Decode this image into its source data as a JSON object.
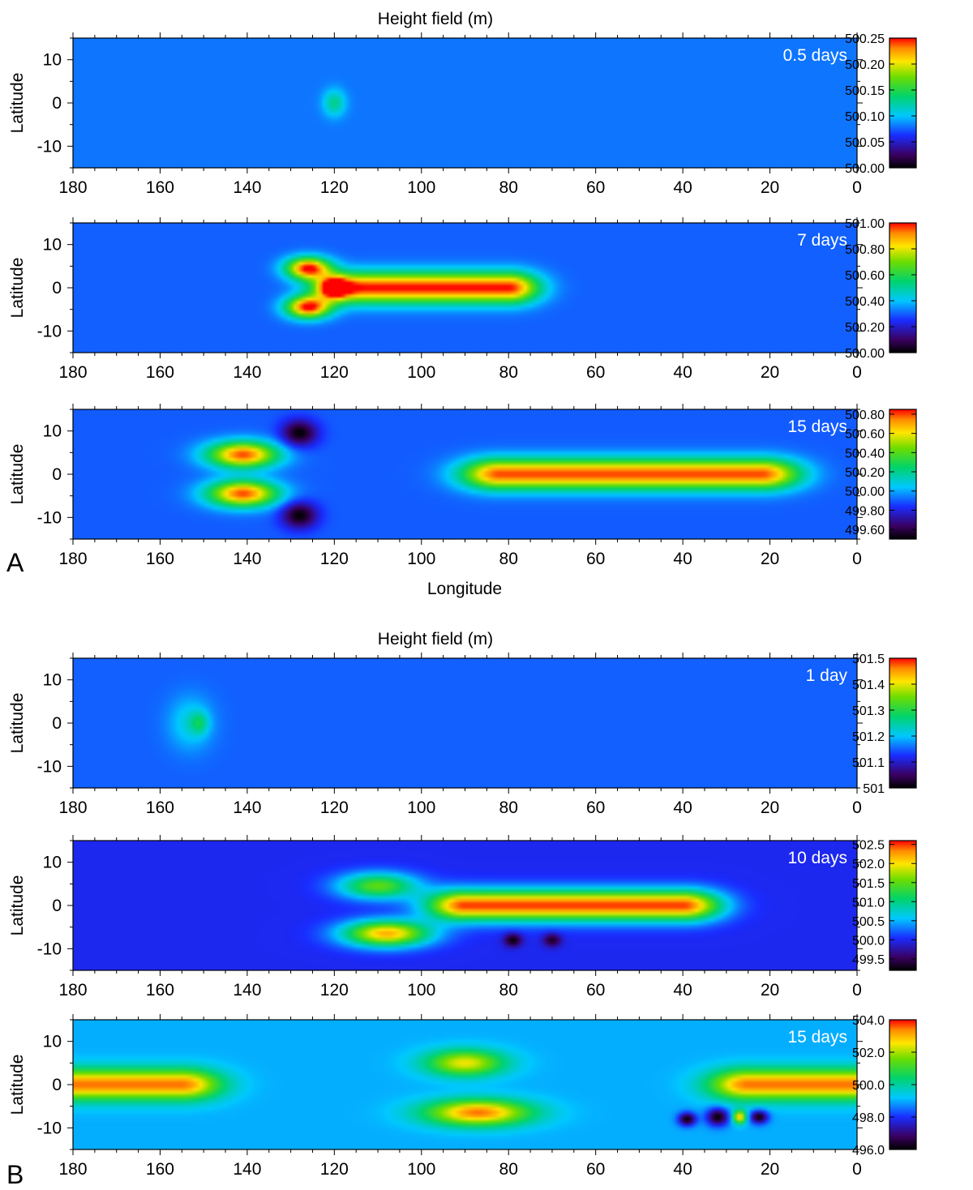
{
  "figure": {
    "groups": [
      {
        "label": "A",
        "title": "Height field (m)",
        "xlabel": "Longitude"
      },
      {
        "label": "B",
        "title": "Height field (m)",
        "xlabel": ""
      }
    ]
  },
  "chart_data": [
    {
      "type": "heatmap",
      "panel_label": "0.5 days",
      "xlabel": "",
      "ylabel": "Latitude",
      "xlim": [
        180,
        0
      ],
      "ylim": [
        -15,
        15
      ],
      "x_ticks": [
        180,
        160,
        140,
        120,
        100,
        80,
        60,
        40,
        20,
        0
      ],
      "y_ticks": [
        10,
        0,
        -10
      ],
      "colorbar": {
        "min": 500.0,
        "max": 500.25,
        "ticks": [
          "500.25",
          "500.20",
          "500.15",
          "500.10",
          "500.05",
          "500.00"
        ]
      },
      "background": 500.08,
      "features": [
        {
          "lon": 120,
          "lat": 0,
          "rlon": 2.5,
          "rlat": 3.0,
          "amp": 0.05
        }
      ]
    },
    {
      "type": "heatmap",
      "panel_label": "7 days",
      "xlabel": "",
      "ylabel": "Latitude",
      "xlim": [
        180,
        0
      ],
      "ylim": [
        -15,
        15
      ],
      "x_ticks": [
        180,
        160,
        140,
        120,
        100,
        80,
        60,
        40,
        20,
        0
      ],
      "y_ticks": [
        10,
        0,
        -10
      ],
      "colorbar": {
        "min": 500.0,
        "max": 501.0,
        "ticks": [
          "501.00",
          "500.80",
          "500.60",
          "500.40",
          "500.20",
          "500.00"
        ]
      },
      "background": 500.3,
      "features": [
        {
          "lon0": 118,
          "lon1": 80,
          "lat": 0,
          "rlat": 3.5,
          "edge": 7,
          "amp": 0.7
        },
        {
          "lon": 126,
          "lat": 4.5,
          "rlon": 5,
          "rlat": 2.5,
          "amp": 0.7
        },
        {
          "lon": 126,
          "lat": -4.5,
          "rlon": 5,
          "rlat": 2.5,
          "amp": 0.7
        },
        {
          "lon": 120,
          "lat": 0,
          "rlon": 3,
          "rlat": 2,
          "amp": 0.5
        }
      ]
    },
    {
      "type": "heatmap",
      "panel_label": "15 days",
      "xlabel": "Longitude",
      "ylabel": "Latitude",
      "xlim": [
        180,
        0
      ],
      "ylim": [
        -15,
        15
      ],
      "x_ticks": [
        180,
        160,
        140,
        120,
        100,
        80,
        60,
        40,
        20,
        0
      ],
      "y_ticks": [
        10,
        0,
        -10
      ],
      "colorbar": {
        "min": 499.5,
        "max": 500.85,
        "ticks": [
          "500.80",
          "500.60",
          "500.40",
          "500.20",
          "500.00",
          "499.80",
          "499.60"
        ]
      },
      "background": 499.9,
      "features": [
        {
          "lon0": 82,
          "lon1": 22,
          "lat": 0,
          "rlat": 3.5,
          "edge": 9,
          "amp": 0.9
        },
        {
          "lon": 141,
          "lat": 4.5,
          "rlon": 8,
          "rlat": 3,
          "amp": 0.9
        },
        {
          "lon": 141,
          "lat": -4.5,
          "rlon": 8,
          "rlat": 3,
          "amp": 0.9
        },
        {
          "lon": 128,
          "lat": 9.5,
          "rlon": 4,
          "rlat": 3,
          "amp": -0.4
        },
        {
          "lon": 128,
          "lat": -9.5,
          "rlon": 4,
          "rlat": 3,
          "amp": -0.4
        }
      ]
    },
    {
      "type": "heatmap",
      "panel_label": "1 day",
      "xlabel": "",
      "ylabel": "Latitude",
      "xlim": [
        180,
        0
      ],
      "ylim": [
        -15,
        15
      ],
      "x_ticks": [
        180,
        160,
        140,
        120,
        100,
        80,
        60,
        40,
        20,
        0
      ],
      "y_ticks": [
        10,
        0,
        -10
      ],
      "colorbar": {
        "min": 501.0,
        "max": 501.5,
        "ticks": [
          "501.5",
          "501.4",
          "501.3",
          "501.2",
          "501.1",
          "501"
        ]
      },
      "background": 501.15,
      "features": [
        {
          "lon": 153,
          "lat": 0,
          "rlon": 5,
          "rlat": 6,
          "amp": 0.07
        },
        {
          "lon": 151,
          "lat": 0,
          "rlon": 2,
          "rlat": 2.5,
          "amp": 0.08
        }
      ]
    },
    {
      "type": "heatmap",
      "panel_label": "10 days",
      "xlabel": "",
      "ylabel": "Latitude",
      "xlim": [
        180,
        0
      ],
      "ylim": [
        -15,
        15
      ],
      "x_ticks": [
        180,
        160,
        140,
        120,
        100,
        80,
        60,
        40,
        20,
        0
      ],
      "y_ticks": [
        10,
        0,
        -10
      ],
      "colorbar": {
        "min": 499.2,
        "max": 502.6,
        "ticks": [
          "502.5",
          "502.0",
          "501.5",
          "501.0",
          "500.5",
          "500.0",
          "499.5"
        ]
      },
      "background": 500.0,
      "features": [
        {
          "lon0": 90,
          "lon1": 40,
          "lat": 0,
          "rlat": 3.5,
          "edge": 9,
          "amp": 2.5
        },
        {
          "lon": 110,
          "lat": 4.5,
          "rlon": 9,
          "rlat": 3,
          "amp": 1.5
        },
        {
          "lon": 108,
          "lat": -6.5,
          "rlon": 10,
          "rlat": 3,
          "amp": 2.2
        },
        {
          "lon": 79,
          "lat": -8,
          "rlon": 2,
          "rlat": 1.5,
          "amp": -0.8
        },
        {
          "lon": 70,
          "lat": -8,
          "rlon": 2,
          "rlat": 1.5,
          "amp": -0.7
        }
      ]
    },
    {
      "type": "heatmap",
      "panel_label": "15 days",
      "xlabel": "",
      "ylabel": "Latitude",
      "xlim": [
        180,
        0
      ],
      "ylim": [
        -15,
        15
      ],
      "x_ticks": [
        180,
        160,
        140,
        120,
        100,
        80,
        60,
        40,
        20,
        0
      ],
      "y_ticks": [
        10,
        0,
        -10
      ],
      "colorbar": {
        "min": 496.0,
        "max": 504.0,
        "ticks": [
          "504.0",
          "502.0",
          "500.0",
          "498.0",
          "496.0"
        ]
      },
      "background": 499.0,
      "features": [
        {
          "lon0": 185,
          "lon1": 155,
          "lat": 0,
          "rlat": 3.5,
          "edge": 9,
          "amp": 4.5
        },
        {
          "lon0": 25,
          "lon1": -5,
          "lat": 0,
          "rlat": 3.5,
          "edge": 9,
          "amp": 4.5
        },
        {
          "lon": 90,
          "lat": 5,
          "rlon": 9,
          "rlat": 3,
          "amp": 3.5
        },
        {
          "lon": 87,
          "lat": -6.5,
          "rlon": 12,
          "rlat": 3,
          "amp": 4.5
        },
        {
          "lon": 39,
          "lat": -8,
          "rlon": 2,
          "rlat": 1.5,
          "amp": -3
        },
        {
          "lon": 32,
          "lat": -7.5,
          "rlon": 2.5,
          "rlat": 2,
          "amp": -3
        },
        {
          "lon": 27,
          "lat": -7.5,
          "rlon": 1.5,
          "rlat": 1.5,
          "amp": 4
        },
        {
          "lon": 22.5,
          "lat": -7.5,
          "rlon": 2,
          "rlat": 1.5,
          "amp": -3
        }
      ]
    }
  ]
}
